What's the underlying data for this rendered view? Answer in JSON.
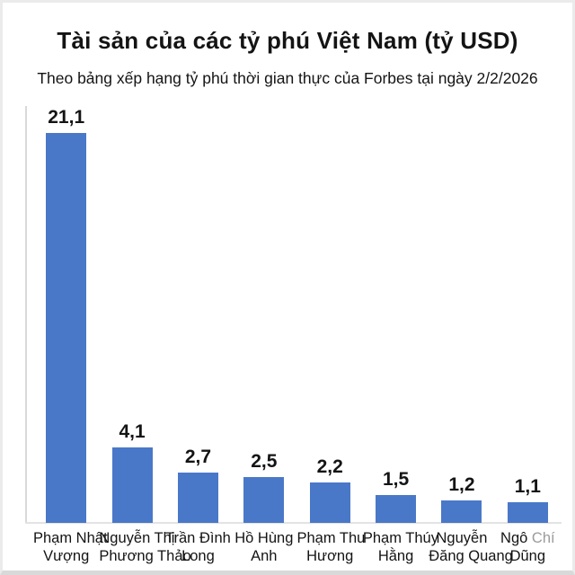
{
  "header": {
    "title": "Tài sản của các tỷ phú Việt Nam (tỷ USD)",
    "subtitle": "Theo bảng xếp hạng tỷ phú thời gian thực của Forbes tại ngày 2/2/2026"
  },
  "colors": {
    "bar": "#4a78c8",
    "axis": "#d9d9d9",
    "axis_light": "#e3e3e3",
    "text": "#141414",
    "muted_text": "#9b9b9b",
    "frame": "#ebebeb",
    "frame_bottom": "#d9d9d9",
    "background": "#ffffff"
  },
  "chart_data": {
    "type": "bar",
    "title": "Tài sản của các tỷ phú Việt Nam (tỷ USD)",
    "subtitle": "Theo bảng xếp hạng tỷ phú thời gian thực của Forbes tại ngày 2/2/2026",
    "xlabel": "",
    "ylabel": "",
    "ylim": [
      0,
      21.1
    ],
    "grid": false,
    "legend": false,
    "decimal_separator": ",",
    "unit": "tỷ USD",
    "categories": [
      "Phạm Nhật Vượng",
      "Nguyễn Thị Phương Thảo",
      "Trần Đình Long",
      "Hồ Hùng Anh",
      "Phạm Thu Hương",
      "Phạm Thúy Hằng",
      "Nguyễn Đăng Quang",
      "Ngô Chí Dũng"
    ],
    "values": [
      21.1,
      4.1,
      2.7,
      2.5,
      2.2,
      1.5,
      1.2,
      1.1
    ],
    "value_labels": [
      "21,1",
      "4,1",
      "2,7",
      "2,5",
      "2,2",
      "1,5",
      "1,2",
      "1,1"
    ],
    "category_lines": [
      {
        "line1": "Phạm Nhật",
        "line2": "Vượng"
      },
      {
        "line1": "Nguyễn Thị",
        "line2": "Phương Thảo"
      },
      {
        "line1": "Trần Đình",
        "line2": "Long"
      },
      {
        "line1": "Hồ Hùng",
        "line2": "Anh"
      },
      {
        "line1": "Phạm Thu",
        "line2": "Hương"
      },
      {
        "line1": "Phạm Thúy",
        "line2": "Hằng"
      },
      {
        "line1": "Nguyễn",
        "line2": "Đăng Quang"
      },
      {
        "line1": "Ngô",
        "line1_muted": "Chí",
        "line2": "Dũng"
      }
    ]
  }
}
